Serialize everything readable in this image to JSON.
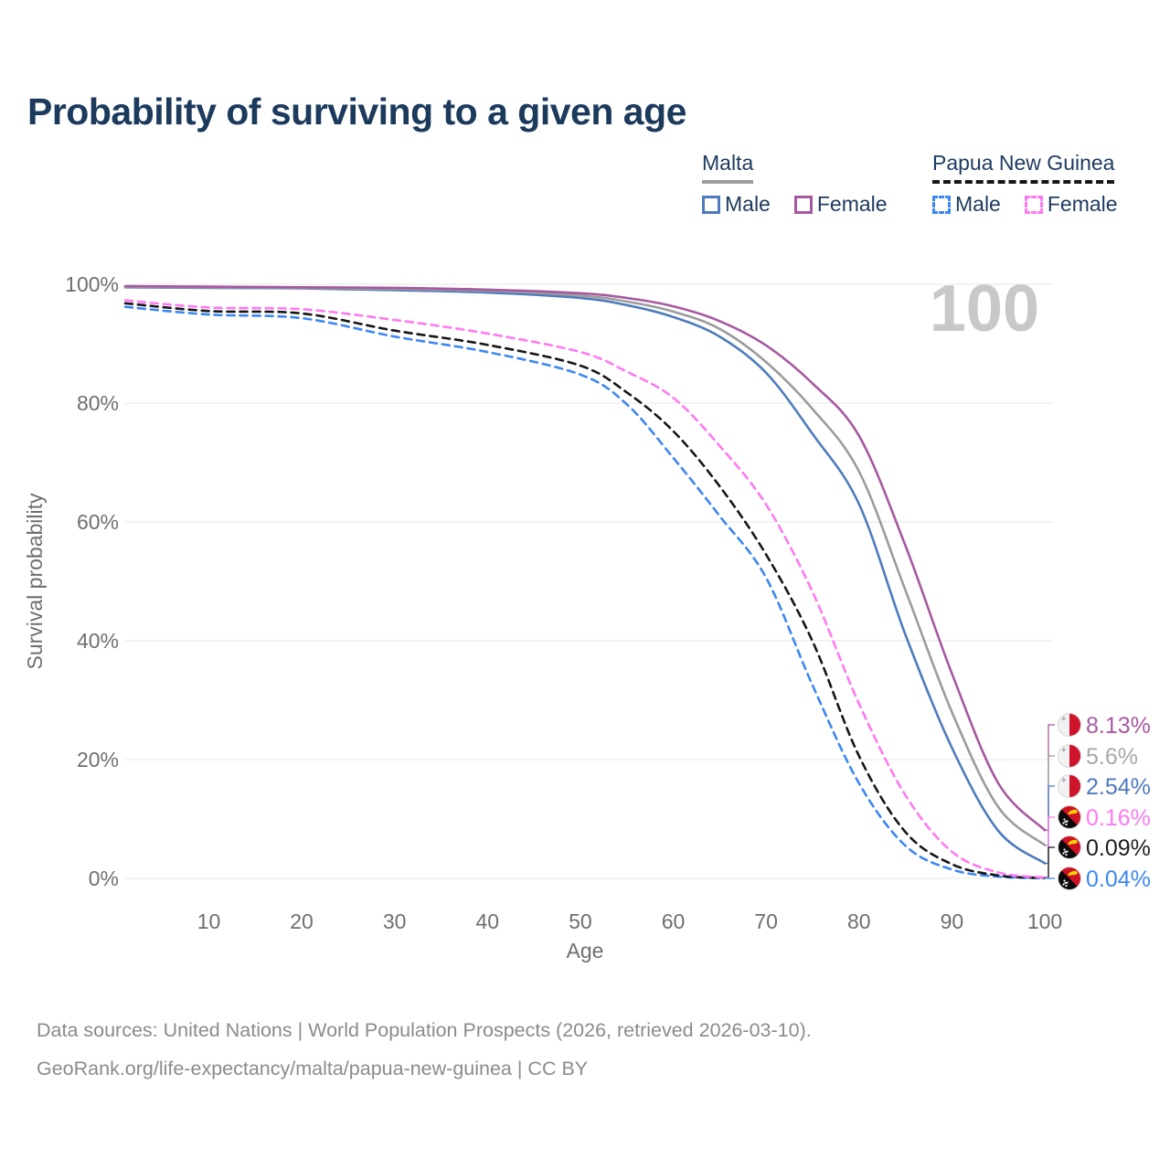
{
  "title": "Probability of surviving to a given age",
  "watermark_age_counter": "100",
  "legend": {
    "groups": [
      {
        "label": "Malta",
        "underline_style": "solid",
        "underline_color": "#9c9c9c",
        "items": [
          {
            "label": "Male",
            "color": "#4e7bbd",
            "dashed": false
          },
          {
            "label": "Female",
            "color": "#a7599f",
            "dashed": false
          }
        ]
      },
      {
        "label": "Papua New Guinea",
        "underline_style": "dashed",
        "underline_color": "#161616",
        "items": [
          {
            "label": "Male",
            "color": "#3c87f2",
            "dashed": true
          },
          {
            "label": "Female",
            "color": "#ff79f1",
            "dashed": true
          }
        ]
      }
    ]
  },
  "chart_data": {
    "type": "line",
    "title": "Probability of surviving to a given age",
    "xlabel": "Age",
    "ylabel": "Survival probability",
    "xlim": [
      1,
      100
    ],
    "ylim": [
      0,
      100
    ],
    "grid": "horizontal",
    "x_ticks": [
      10,
      20,
      30,
      40,
      50,
      60,
      70,
      80,
      90,
      100
    ],
    "y_tick_values": [
      0,
      20,
      40,
      60,
      80,
      100
    ],
    "y_tick_labels": [
      "0%",
      "20%",
      "40%",
      "60%",
      "80%",
      "100%"
    ],
    "x": [
      1,
      10,
      20,
      30,
      40,
      50,
      55,
      60,
      65,
      70,
      75,
      80,
      85,
      90,
      95,
      100
    ],
    "series": [
      {
        "name": "Malta Female",
        "country": "Malta",
        "sex": "Female",
        "style": "solid",
        "color": "#a7599f",
        "flag": "mt",
        "end_label": "8.13%",
        "end_label_color": "#a7599f",
        "values": [
          99.7,
          99.6,
          99.5,
          99.4,
          99.1,
          98.5,
          97.7,
          96.3,
          93.8,
          89.7,
          83.3,
          74.5,
          56.0,
          34.5,
          16.0,
          8.13
        ]
      },
      {
        "name": "Malta Both sexes",
        "country": "Malta",
        "sex": "Both",
        "style": "solid",
        "color": "#9c9c9c",
        "flag": "mt",
        "end_label": "5.6%",
        "end_label_color": "#a8a8a8",
        "values": [
          99.6,
          99.5,
          99.4,
          99.2,
          98.9,
          98.1,
          97.1,
          95.4,
          92.5,
          86.9,
          79.0,
          68.5,
          48.5,
          28.0,
          12.0,
          5.6
        ]
      },
      {
        "name": "Malta Male",
        "country": "Malta",
        "sex": "Male",
        "style": "solid",
        "color": "#4e7bbd",
        "flag": "mt",
        "end_label": "2.54%",
        "end_label_color": "#4e7bbd",
        "values": [
          99.5,
          99.4,
          99.3,
          99.0,
          98.6,
          97.7,
          96.5,
          94.5,
          91.2,
          85.1,
          74.8,
          63.0,
          41.0,
          22.0,
          8.0,
          2.54
        ]
      },
      {
        "name": "Papua New Guinea Female",
        "country": "Papua New Guinea",
        "sex": "Female",
        "style": "dashed",
        "color": "#ff79f1",
        "flag": "pg",
        "end_label": "0.16%",
        "end_label_color": "#ff79f1",
        "values": [
          97.3,
          96.1,
          95.8,
          94.0,
          91.7,
          88.6,
          85.3,
          80.9,
          72.8,
          62.9,
          48.2,
          29.4,
          14.0,
          4.5,
          1.0,
          0.16
        ]
      },
      {
        "name": "Papua New Guinea Both sexes",
        "country": "Papua New Guinea",
        "sex": "Both",
        "style": "dashed",
        "color": "#161616",
        "flag": "pg",
        "end_label": "0.09%",
        "end_label_color": "#1f1f1f",
        "values": [
          96.8,
          95.5,
          95.1,
          92.2,
          89.8,
          86.3,
          81.8,
          75.3,
          66.0,
          54.5,
          39.9,
          20.6,
          7.8,
          2.4,
          0.5,
          0.09
        ]
      },
      {
        "name": "Papua New Guinea Male",
        "country": "Papua New Guinea",
        "sex": "Male",
        "style": "dashed",
        "color": "#3c87f2",
        "flag": "pg",
        "end_label": "0.04%",
        "end_label_color": "#3c87f2",
        "values": [
          96.2,
          94.9,
          94.3,
          91.2,
          88.6,
          84.8,
          79.8,
          70.8,
          61.0,
          50.6,
          32.5,
          16.0,
          5.5,
          1.5,
          0.3,
          0.04
        ]
      }
    ]
  },
  "footer": {
    "line1": "Data sources: United Nations | World Population Prospects (2026, retrieved 2026-03-10).",
    "line2": "GeoRank.org/life-expectancy/malta/papua-new-guinea | CC BY"
  }
}
